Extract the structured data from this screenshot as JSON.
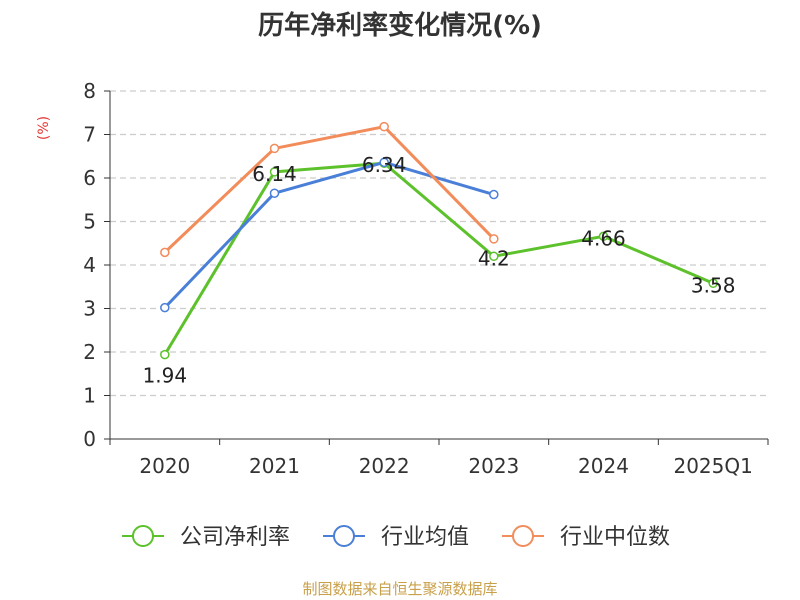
{
  "chart_data": {
    "type": "line",
    "title": "历年净利率变化情况(%)",
    "ylabel": "(%)",
    "xlabel": "",
    "categories": [
      "2020",
      "2021",
      "2022",
      "2023",
      "2024",
      "2025Q1"
    ],
    "ylim": [
      0,
      8
    ],
    "yticks": [
      0,
      1,
      2,
      3,
      4,
      5,
      6,
      7,
      8
    ],
    "grid": true,
    "legend_position": "bottom",
    "series": [
      {
        "name": "公司净利率",
        "color": "#5cc12b",
        "values": [
          1.94,
          6.14,
          6.34,
          4.2,
          4.66,
          3.58
        ],
        "labels": [
          "1.94",
          "6.14",
          "6.34",
          "4.2",
          "4.66",
          "3.58"
        ]
      },
      {
        "name": "行业均值",
        "color": "#4a7fd8",
        "values": [
          3.02,
          5.65,
          6.36,
          5.62,
          null,
          null
        ],
        "labels": null
      },
      {
        "name": "行业中位数",
        "color": "#f28c5a",
        "values": [
          4.29,
          6.68,
          7.18,
          4.6,
          null,
          null
        ],
        "labels": null
      }
    ]
  },
  "source": "制图数据来自恒生聚源数据库",
  "colors": {
    "grid": "#cccccc",
    "axis": "#333333",
    "ylabel": "#e53935",
    "source": "#c9a04a",
    "title": "#333333"
  }
}
